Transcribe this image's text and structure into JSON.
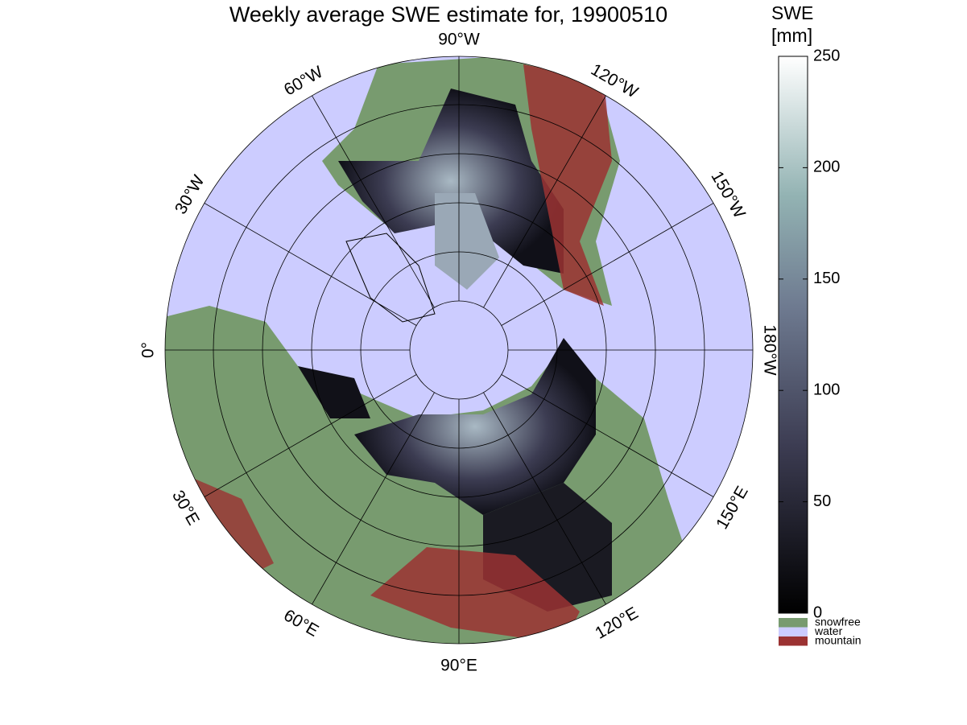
{
  "title": "Weekly average SWE estimate for, 19900510",
  "meridians": [
    {
      "value": -90,
      "label": "90°W"
    },
    {
      "value": -120,
      "label": "120°W"
    },
    {
      "value": -150,
      "label": "150°W"
    },
    {
      "value": -180,
      "label": "180°W"
    },
    {
      "value": 150,
      "label": "150°E"
    },
    {
      "value": 120,
      "label": "120°E"
    },
    {
      "value": 90,
      "label": "90°E"
    },
    {
      "value": 60,
      "label": "60°E"
    },
    {
      "value": 30,
      "label": "30°E"
    },
    {
      "value": 0,
      "label": "0°"
    },
    {
      "value": -30,
      "label": "30°W"
    },
    {
      "value": -60,
      "label": "60°W"
    }
  ],
  "colorbar": {
    "title": "SWE",
    "unit": "[mm]",
    "range": [
      0,
      250
    ],
    "ticks": [
      0,
      50,
      100,
      150,
      200,
      250
    ]
  },
  "legend": [
    {
      "name": "snowfree",
      "color": "#789b6f"
    },
    {
      "name": "water",
      "color": "#ccccff"
    },
    {
      "name": "mountain",
      "color": "#9b3232"
    }
  ]
}
